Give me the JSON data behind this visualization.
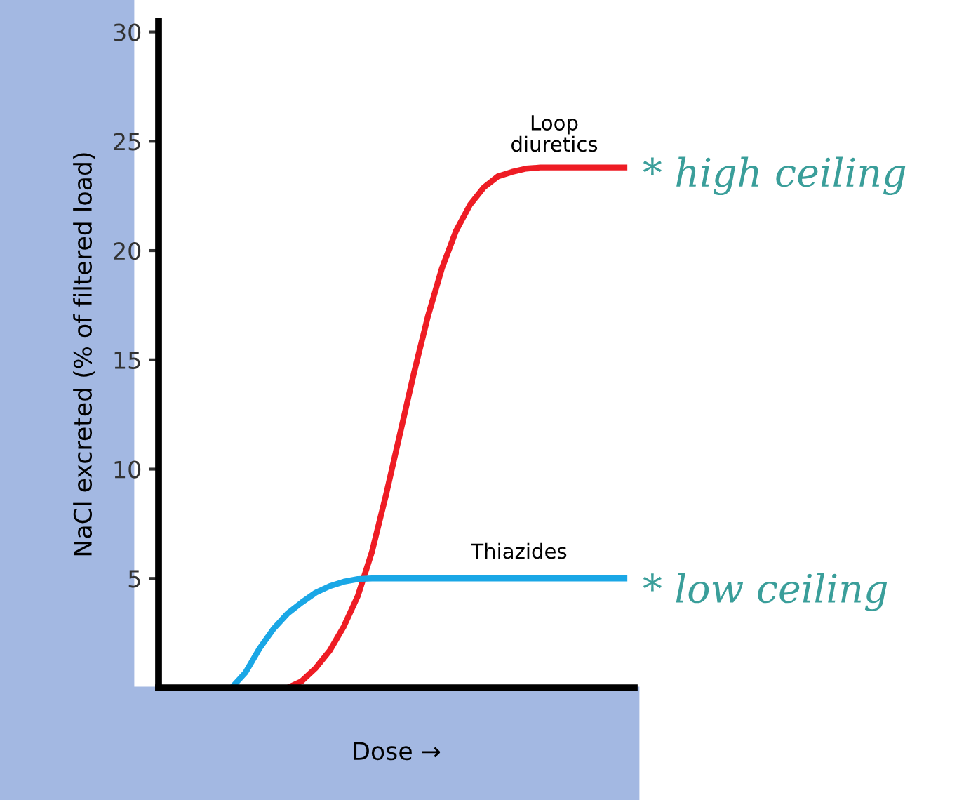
{
  "chart_data": {
    "type": "line",
    "ylabel": "NaCl excreted (% of filtered load)",
    "xlabel": "Dose →",
    "categories": [
      null,
      null,
      null,
      null,
      null,
      null,
      null,
      null,
      null,
      null,
      null,
      null,
      null,
      null,
      null,
      null,
      null,
      null,
      null,
      null,
      null,
      null,
      null,
      null,
      null,
      null,
      null,
      null,
      null,
      null,
      null,
      null,
      null,
      null
    ],
    "series": [
      {
        "name": "Loop diuretics",
        "color": "#ee1c24",
        "values": [
          null,
          null,
          null,
          null,
          null,
          null,
          null,
          null,
          null,
          0,
          0.3,
          0.9,
          1.7,
          2.8,
          4.2,
          6.2,
          8.8,
          11.6,
          14.4,
          17.0,
          19.2,
          20.9,
          22.1,
          22.9,
          23.4,
          23.6,
          23.75,
          23.8,
          23.8,
          23.8,
          23.8,
          23.8,
          23.8,
          23.8
        ]
      },
      {
        "name": "Thiazides",
        "color": "#1aa7e6",
        "values": [
          null,
          null,
          null,
          null,
          null,
          0,
          0.7,
          1.8,
          2.7,
          3.4,
          3.9,
          4.35,
          4.65,
          4.85,
          4.97,
          5,
          5,
          5,
          5,
          5,
          5,
          5,
          5,
          5,
          5,
          5,
          5,
          5,
          5,
          5,
          5,
          5,
          5,
          5
        ]
      }
    ],
    "ylim": [
      0,
      30.5
    ],
    "yticks": [
      5,
      10,
      15,
      20,
      25,
      30
    ],
    "grid": false,
    "legend": false,
    "marker": "none",
    "line_style": "solid",
    "annotations": [
      "* high ceiling",
      "* low ceiling"
    ]
  }
}
